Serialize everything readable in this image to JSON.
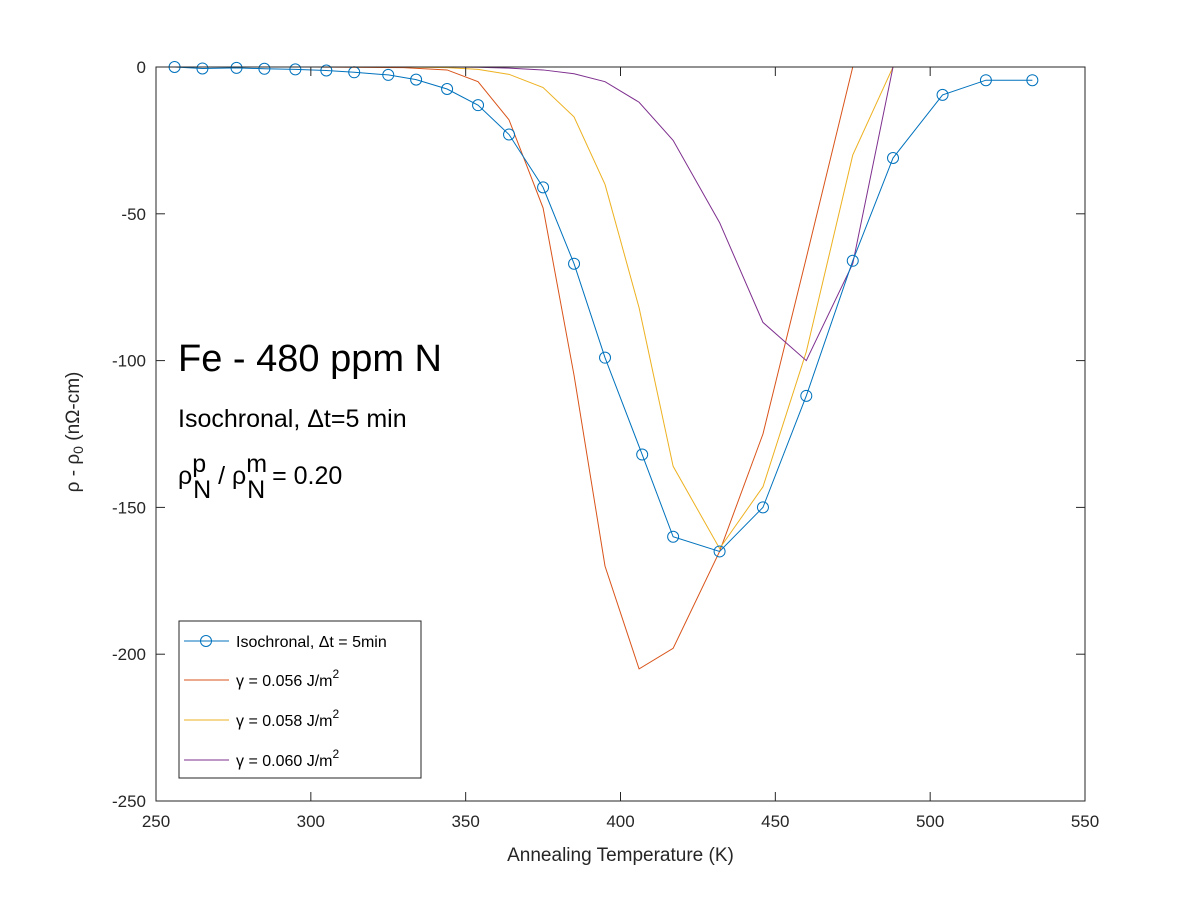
{
  "chart_data": {
    "type": "line",
    "xlabel": "Annealing Temperature (K)",
    "ylabel": {
      "base": "ρ - ρ",
      "sub": "0",
      "rest": " (nΩ-cm)"
    },
    "xlim": [
      250,
      550
    ],
    "ylim": [
      -250,
      0
    ],
    "xticks": [
      "250",
      "300",
      "350",
      "400",
      "450",
      "500",
      "550"
    ],
    "yticks": [
      "0",
      "-50",
      "-100",
      "-150",
      "-200",
      "-250"
    ],
    "grid": false,
    "legend_position": "bottom-left",
    "annotations": {
      "title": "Fe - 480 ppm N",
      "line2": "Isochronal, Δt=5 min",
      "ratio": {
        "rho": "ρ",
        "sup1": "p",
        "sub1": "N",
        "slash": " / ρ",
        "sup2": "m",
        "sub2": "N",
        "tail": " = 0.20"
      }
    },
    "series": [
      {
        "name": "Isochronal, Δt = 5min",
        "color": "#0072BD",
        "marker": "circle",
        "x": [
          256,
          265,
          276,
          285,
          295,
          305,
          314,
          325,
          334,
          344,
          354,
          364,
          375,
          385,
          395,
          407,
          417,
          432,
          446,
          460,
          475,
          488,
          504,
          518,
          533
        ],
        "y": [
          0,
          -0.5,
          -0.3,
          -0.6,
          -0.8,
          -1.2,
          -1.8,
          -2.7,
          -4.3,
          -7.5,
          -13,
          -23,
          -41,
          -67,
          -99,
          -132,
          -160,
          -165,
          -150,
          -112,
          -66,
          -31,
          -9.5,
          -4.5,
          -4.5
        ]
      },
      {
        "name": "γ = 0.056 J/m",
        "name_sup": "2",
        "color": "#D95319",
        "marker": "none",
        "x": [
          256,
          300,
          330,
          344,
          354,
          364,
          375,
          385,
          395,
          406,
          417,
          432,
          446,
          460,
          475,
          488
        ],
        "y": [
          0,
          0,
          -0.2,
          -1,
          -5,
          -18,
          -48,
          -105,
          -170,
          -205,
          -198,
          -165,
          -125,
          -65,
          0,
          0
        ]
      },
      {
        "name": "γ = 0.058 J/m",
        "name_sup": "2",
        "color": "#EDB120",
        "marker": "none",
        "x": [
          256,
          330,
          344,
          354,
          364,
          375,
          385,
          395,
          406,
          417,
          432,
          446,
          460,
          475,
          488,
          504
        ],
        "y": [
          0,
          0,
          -0.2,
          -0.8,
          -2.5,
          -7,
          -17,
          -40,
          -82,
          -136,
          -164,
          -143,
          -97,
          -30,
          0,
          0
        ]
      },
      {
        "name": "γ = 0.060 J/m",
        "name_sup": "2",
        "color": "#7E2F8E",
        "marker": "none",
        "x": [
          256,
          344,
          354,
          364,
          375,
          385,
          395,
          406,
          417,
          432,
          446,
          460,
          475,
          488,
          504,
          533
        ],
        "y": [
          0,
          0,
          -0.1,
          -0.4,
          -1,
          -2.3,
          -5,
          -12,
          -25,
          -53,
          -87,
          -100,
          -67,
          0,
          0,
          0
        ]
      }
    ]
  }
}
